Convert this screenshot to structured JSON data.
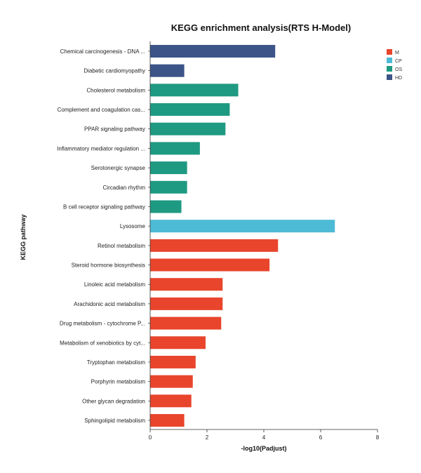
{
  "chart_data": {
    "type": "bar",
    "orientation": "horizontal",
    "title": "KEGG enrichment analysis(RTS H-Model)",
    "xlabel": "-log10(Padjust)",
    "ylabel": "KEGG pathway",
    "xlim": [
      0,
      8
    ],
    "xticks": [
      "0",
      "2",
      "4",
      "6",
      "8"
    ],
    "grid": false,
    "legend_position": "top-right",
    "legend": [
      {
        "name": "M",
        "color": "#e8452c"
      },
      {
        "name": "CP",
        "color": "#4dbbd5"
      },
      {
        "name": "OS",
        "color": "#1f9a82"
      },
      {
        "name": "HD",
        "color": "#3c5488"
      }
    ],
    "categories": [
      "Chemical carcinogenesis - DNA ...",
      "Diabetic cardiomyopathy",
      "Cholesterol metabolism",
      "Complement and coagulation cas...",
      "PPAR signaling pathway",
      "Inflammatory mediator regulation ...",
      "Serotonergic synapse",
      "Circadian rhythm",
      "B cell receptor signaling pathway",
      "Lysosome",
      "Retinol metabolism",
      "Steroid hormone biosynthesis",
      "Linoleic acid metabolism",
      "Arachidonic acid metabolism",
      "Drug metabolism - cytochrome P...",
      "Metabolism of xenobiotics by cyt...",
      "Tryptophan metabolism",
      "Porphyrin metabolism",
      "Other glycan degradation",
      "Sphingolipid metabolism"
    ],
    "values": [
      4.4,
      1.2,
      3.1,
      2.8,
      2.65,
      1.75,
      1.3,
      1.3,
      1.1,
      6.5,
      4.5,
      4.2,
      2.55,
      2.55,
      2.5,
      1.95,
      1.6,
      1.5,
      1.45,
      1.2
    ],
    "groups": [
      "HD",
      "HD",
      "OS",
      "OS",
      "OS",
      "OS",
      "OS",
      "OS",
      "OS",
      "CP",
      "M",
      "M",
      "M",
      "M",
      "M",
      "M",
      "M",
      "M",
      "M",
      "M"
    ]
  }
}
